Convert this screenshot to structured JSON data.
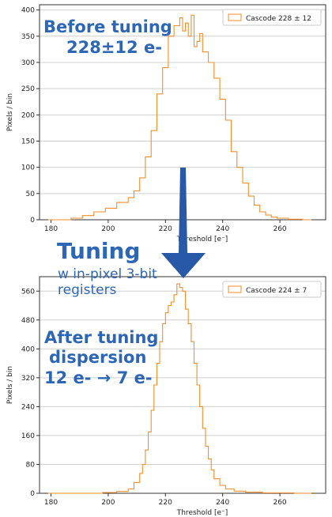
{
  "colors": {
    "series": "#f28e2b",
    "annotation": "#2d66b5",
    "arrow": "#2859a8",
    "grid": "#cfcfcf",
    "axis": "#333333"
  },
  "chart_data": [
    {
      "type": "histogram",
      "xlabel": "Threshold [e⁻]",
      "ylabel": "Pixels / bin",
      "xlim": [
        176,
        276
      ],
      "ylim": [
        0,
        410
      ],
      "xticks": [
        180,
        200,
        220,
        240,
        260
      ],
      "yticks": [
        0,
        50,
        100,
        150,
        200,
        250,
        300,
        350,
        400
      ],
      "grid": "horizontal",
      "legend": {
        "label": "Cascode 228 ± 12",
        "placement": "top-right"
      },
      "series": [
        {
          "name": "Cascode 228 ± 12",
          "step": "post",
          "x": [
            179,
            187,
            191,
            195,
            199,
            203,
            207,
            209,
            211,
            213,
            215,
            217,
            219,
            221,
            223,
            225,
            226,
            227,
            228,
            229,
            230,
            231,
            232,
            233,
            235,
            237,
            239,
            241,
            243,
            245,
            247,
            249,
            251,
            253,
            255,
            257,
            259,
            263,
            268,
            271
          ],
          "y": [
            0,
            3,
            8,
            15,
            22,
            33,
            42,
            55,
            80,
            120,
            170,
            240,
            290,
            350,
            370,
            385,
            360,
            375,
            350,
            390,
            330,
            340,
            355,
            320,
            300,
            270,
            230,
            190,
            130,
            100,
            70,
            45,
            28,
            15,
            9,
            5,
            3,
            1,
            0,
            0
          ]
        }
      ]
    },
    {
      "type": "histogram",
      "xlabel": "Threshold [e⁻]",
      "ylabel": "Pixels / bin",
      "xlim": [
        176,
        276
      ],
      "ylim": [
        0,
        600
      ],
      "xticks": [
        180,
        200,
        220,
        240,
        260
      ],
      "yticks": [
        0,
        80,
        160,
        240,
        320,
        400,
        480,
        560
      ],
      "grid": "horizontal",
      "legend": {
        "label": "Cascode 224 ± 7",
        "placement": "top-right"
      },
      "series": [
        {
          "name": "Cascode 224 ± 7",
          "step": "post",
          "x": [
            179,
            198,
            203,
            207,
            209,
            211,
            212,
            213,
            214,
            215,
            216,
            217,
            218,
            219,
            220,
            221,
            222,
            223,
            224,
            225,
            226,
            227,
            228,
            229,
            230,
            231,
            232,
            233,
            234,
            235,
            236,
            237,
            239,
            241,
            244,
            248,
            254,
            265,
            271
          ],
          "y": [
            0,
            2,
            5,
            12,
            30,
            55,
            80,
            120,
            170,
            230,
            300,
            360,
            420,
            470,
            500,
            520,
            530,
            550,
            580,
            570,
            560,
            510,
            470,
            420,
            360,
            300,
            240,
            180,
            130,
            95,
            65,
            40,
            22,
            12,
            6,
            3,
            1,
            0,
            0
          ]
        }
      ]
    }
  ],
  "annotations": {
    "before_line1": "Before tuning",
    "before_line2": "228±12 e-",
    "tuning_title": "Tuning",
    "tuning_line1": "w in-pixel 3-bit",
    "tuning_line2": "registers",
    "after_line1": "After tuning",
    "after_line2": "dispersion",
    "after_line3": "12 e- → 7 e-"
  }
}
